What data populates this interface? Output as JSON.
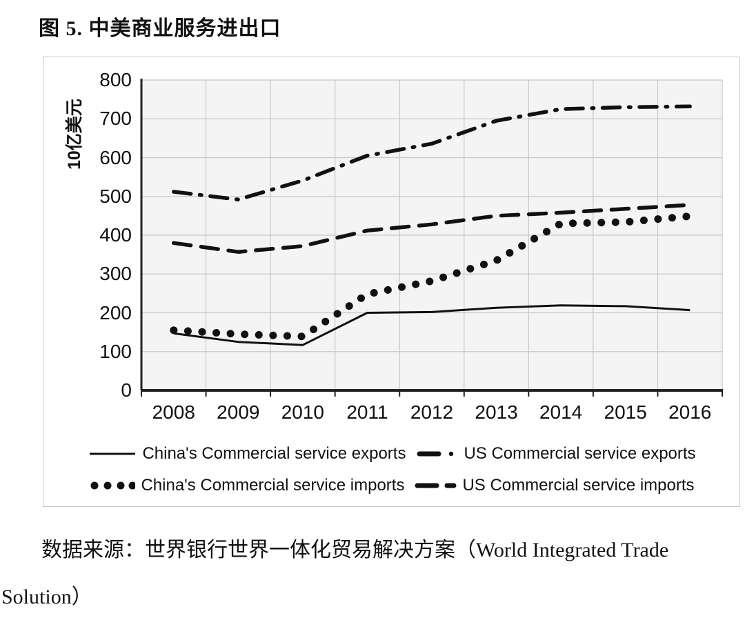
{
  "title": "图 5. 中美商业服务进出口",
  "chart_data": {
    "type": "line",
    "title": "图 5. 中美商业服务进出口",
    "xlabel": "",
    "ylabel": "10亿美元",
    "ylim": [
      0,
      800
    ],
    "ytick_step": 100,
    "grid": true,
    "legend_position": "bottom",
    "categories": [
      "2008",
      "2009",
      "2010",
      "2011",
      "2012",
      "2013",
      "2014",
      "2015",
      "2016"
    ],
    "series": [
      {
        "name": "China's Commercial service exports",
        "style": "solid",
        "values": [
          147,
          125,
          117,
          200,
          202,
          213,
          219,
          217,
          207
        ]
      },
      {
        "name": "US Commercial service exports",
        "style": "dashdot",
        "values": [
          512,
          492,
          541,
          605,
          636,
          695,
          725,
          730,
          732
        ]
      },
      {
        "name": "China's Commercial service imports",
        "style": "dotted",
        "values": [
          155,
          145,
          139,
          248,
          282,
          335,
          430,
          434,
          449
        ]
      },
      {
        "name": "US Commercial service imports",
        "style": "dashed",
        "values": [
          380,
          357,
          372,
          412,
          428,
          450,
          458,
          468,
          478
        ]
      }
    ]
  },
  "source": {
    "line1": "数据来源：世界银行世界一体化贸易解决方案（World Integrated Trade",
    "line2": "Solution）"
  },
  "colors": {
    "ink": "#111111",
    "gridline": "#c8c8c8",
    "plot_bg": "#f4f4f4",
    "box_border": "#c4c4c4"
  }
}
